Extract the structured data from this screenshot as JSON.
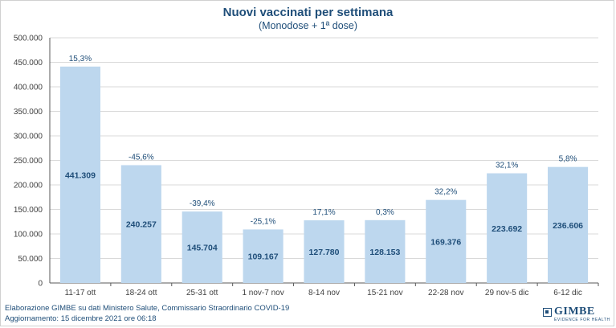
{
  "chart_data": {
    "type": "bar",
    "title": "Nuovi vaccinati per settimana",
    "subtitle": "(Monodose  + 1ª dose)",
    "categories": [
      "11-17 ott",
      "18-24 ott",
      "25-31 ott",
      "1 nov-7 nov",
      "8-14 nov",
      "15-21 nov",
      "22-28 nov",
      "29 nov-5 dic",
      "6-12 dic"
    ],
    "values": [
      441309,
      240257,
      145704,
      109167,
      127780,
      128153,
      169376,
      223692,
      236606
    ],
    "value_labels": [
      "441.309",
      "240.257",
      "145.704",
      "109.167",
      "127.780",
      "128.153",
      "169.376",
      "223.692",
      "236.606"
    ],
    "change_labels": [
      "15,3%",
      "-45,6%",
      "-39,4%",
      "-25,1%",
      "17,1%",
      "0,3%",
      "32,2%",
      "32,1%",
      "5,8%"
    ],
    "yticks": [
      0,
      50000,
      100000,
      150000,
      200000,
      250000,
      300000,
      350000,
      400000,
      450000,
      500000
    ],
    "ytick_labels": [
      "0",
      "50.000",
      "100.000",
      "150.000",
      "200.000",
      "250.000",
      "300.000",
      "350.000",
      "400.000",
      "450.000",
      "500.000"
    ],
    "ylim": [
      0,
      500000
    ],
    "xlabel": "",
    "ylabel": "",
    "grid": true,
    "colors": {
      "bar": "#bdd7ee",
      "text": "#1f4e79",
      "axis": "#595959",
      "grid": "#d9d9d9"
    }
  },
  "footer": {
    "source": "Elaborazione GIMBE su dati Ministero Salute, Commissario Straordinario COVID-19",
    "updated": "Aggiornamento: 15 dicembre 2021 ore 06:18"
  },
  "logo": {
    "name": "GIMBE",
    "tagline": "EVIDENCE FOR HEALTH"
  }
}
